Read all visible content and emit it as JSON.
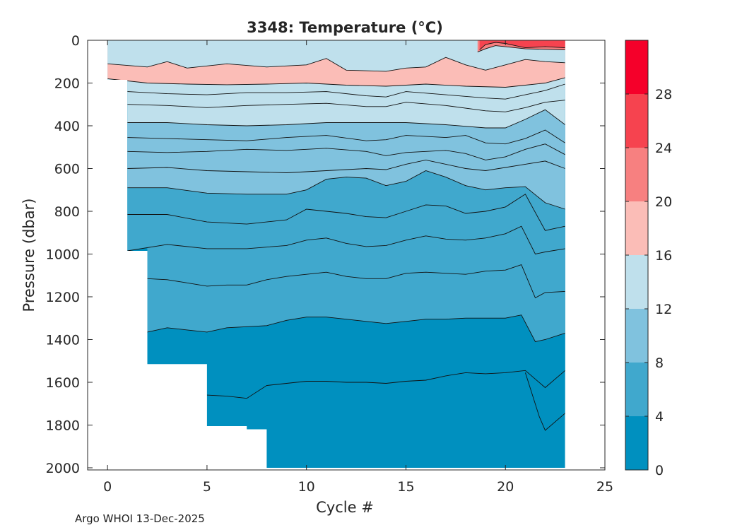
{
  "chart_data": {
    "type": "contour",
    "title": "3348:  Temperature (",
    "title_unit": "°C)",
    "xlabel": "Cycle #",
    "ylabel": "Pressure (dbar)",
    "xlim": [
      -1,
      25
    ],
    "ylim": [
      2010,
      0
    ],
    "x_ticks": [
      0,
      5,
      10,
      15,
      20,
      25
    ],
    "y_ticks": [
      0,
      200,
      400,
      600,
      800,
      1000,
      1200,
      1400,
      1600,
      1800,
      2000
    ],
    "colorbar": {
      "range": [
        0,
        32
      ],
      "ticks": [
        0,
        4,
        8,
        12,
        16,
        20,
        24,
        28
      ],
      "levels": [
        {
          "min": 0,
          "max": 4,
          "color": "#0090bf"
        },
        {
          "min": 4,
          "max": 8,
          "color": "#40a8cd"
        },
        {
          "min": 8,
          "max": 12,
          "color": "#80c2de"
        },
        {
          "min": 12,
          "max": 16,
          "color": "#bfe0ec"
        },
        {
          "min": 16,
          "max": 20,
          "color": "#fbbdb7"
        },
        {
          "min": 20,
          "max": 24,
          "color": "#f78080"
        },
        {
          "min": 24,
          "max": 28,
          "color": "#f6434f"
        },
        {
          "min": 28,
          "max": 32,
          "color": "#f5002a"
        }
      ]
    },
    "profile_max_depth": [
      {
        "cycle": 0,
        "pressure": 185
      },
      {
        "cycle": 1,
        "pressure": 985
      },
      {
        "cycle": 2,
        "pressure": 1515
      },
      {
        "cycle": 5,
        "pressure": 1805
      },
      {
        "cycle": 7,
        "pressure": 1820
      },
      {
        "cycle": 8,
        "pressure": 2000
      },
      {
        "cycle": 23,
        "pressure": 2000
      }
    ],
    "isotherms": [
      {
        "temp": 24,
        "points": [
          [
            18.7,
            45
          ],
          [
            19.0,
            20
          ],
          [
            19.5,
            10
          ],
          [
            20.0,
            15
          ],
          [
            20.5,
            25
          ],
          [
            21.0,
            35
          ],
          [
            22.0,
            30
          ],
          [
            23.0,
            35
          ]
        ]
      },
      {
        "temp": 20,
        "points": [
          [
            18.6,
            55
          ],
          [
            19.0,
            40
          ],
          [
            19.5,
            25
          ],
          [
            20.0,
            30
          ],
          [
            21.0,
            40
          ],
          [
            23.0,
            45
          ]
        ]
      },
      {
        "temp": 16,
        "points": [
          [
            0,
            180
          ],
          [
            2,
            200
          ],
          [
            4,
            205
          ],
          [
            6,
            208
          ],
          [
            8,
            205
          ],
          [
            10,
            200
          ],
          [
            12,
            210
          ],
          [
            14,
            215
          ],
          [
            16,
            205
          ],
          [
            18,
            215
          ],
          [
            20,
            220
          ],
          [
            21,
            210
          ],
          [
            22,
            200
          ],
          [
            23,
            175
          ]
        ]
      },
      {
        "temp": 15,
        "points": [
          [
            0,
            110
          ],
          [
            2,
            125
          ],
          [
            3,
            100
          ],
          [
            4,
            130
          ],
          [
            5,
            120
          ],
          [
            6,
            110
          ],
          [
            8,
            125
          ],
          [
            10,
            115
          ],
          [
            11,
            85
          ],
          [
            12,
            140
          ],
          [
            14,
            145
          ],
          [
            15,
            130
          ],
          [
            16,
            125
          ],
          [
            17,
            80
          ],
          [
            18,
            115
          ],
          [
            19,
            140
          ],
          [
            20,
            115
          ],
          [
            21,
            90
          ],
          [
            22,
            100
          ],
          [
            23,
            105
          ]
        ]
      },
      {
        "temp": 14,
        "points": [
          [
            1,
            240
          ],
          [
            3,
            250
          ],
          [
            5,
            255
          ],
          [
            7,
            245
          ],
          [
            9,
            245
          ],
          [
            11,
            240
          ],
          [
            13,
            260
          ],
          [
            14,
            265
          ],
          [
            15,
            240
          ],
          [
            17,
            255
          ],
          [
            19,
            270
          ],
          [
            20,
            275
          ],
          [
            21,
            255
          ],
          [
            22,
            235
          ],
          [
            23,
            205
          ]
        ]
      },
      {
        "temp": 13,
        "points": [
          [
            1,
            300
          ],
          [
            3,
            305
          ],
          [
            5,
            315
          ],
          [
            7,
            305
          ],
          [
            9,
            300
          ],
          [
            11,
            295
          ],
          [
            13,
            310
          ],
          [
            14,
            310
          ],
          [
            15,
            290
          ],
          [
            17,
            305
          ],
          [
            19,
            330
          ],
          [
            20,
            335
          ],
          [
            21,
            315
          ],
          [
            22,
            290
          ],
          [
            23,
            280
          ]
        ]
      },
      {
        "temp": 12,
        "points": [
          [
            1,
            385
          ],
          [
            3,
            385
          ],
          [
            5,
            395
          ],
          [
            7,
            400
          ],
          [
            9,
            395
          ],
          [
            11,
            385
          ],
          [
            13,
            385
          ],
          [
            15,
            385
          ],
          [
            17,
            395
          ],
          [
            19,
            410
          ],
          [
            20,
            410
          ],
          [
            21,
            370
          ],
          [
            22,
            325
          ],
          [
            23,
            395
          ]
        ]
      },
      {
        "temp": 11,
        "points": [
          [
            1,
            455
          ],
          [
            3,
            460
          ],
          [
            5,
            465
          ],
          [
            7,
            470
          ],
          [
            9,
            455
          ],
          [
            11,
            445
          ],
          [
            13,
            470
          ],
          [
            14,
            465
          ],
          [
            15,
            445
          ],
          [
            17,
            455
          ],
          [
            18,
            445
          ],
          [
            19,
            480
          ],
          [
            20,
            485
          ],
          [
            21,
            460
          ],
          [
            22,
            420
          ],
          [
            23,
            480
          ]
        ]
      },
      {
        "temp": 10,
        "points": [
          [
            1,
            520
          ],
          [
            3,
            525
          ],
          [
            5,
            520
          ],
          [
            7,
            510
          ],
          [
            9,
            515
          ],
          [
            11,
            505
          ],
          [
            13,
            520
          ],
          [
            14,
            540
          ],
          [
            15,
            525
          ],
          [
            17,
            515
          ],
          [
            18,
            530
          ],
          [
            19,
            560
          ],
          [
            20,
            545
          ],
          [
            21,
            510
          ],
          [
            22,
            485
          ],
          [
            23,
            535
          ]
        ]
      },
      {
        "temp": 9,
        "points": [
          [
            1,
            600
          ],
          [
            3,
            595
          ],
          [
            5,
            610
          ],
          [
            7,
            615
          ],
          [
            9,
            620
          ],
          [
            11,
            610
          ],
          [
            13,
            600
          ],
          [
            14,
            605
          ],
          [
            15,
            580
          ],
          [
            16,
            560
          ],
          [
            17,
            580
          ],
          [
            18,
            600
          ],
          [
            19,
            610
          ],
          [
            20,
            595
          ],
          [
            21,
            580
          ],
          [
            22,
            565
          ],
          [
            23,
            600
          ]
        ]
      },
      {
        "temp": 8,
        "points": [
          [
            1,
            690
          ],
          [
            3,
            690
          ],
          [
            5,
            715
          ],
          [
            7,
            720
          ],
          [
            9,
            720
          ],
          [
            10,
            700
          ],
          [
            11,
            650
          ],
          [
            12,
            640
          ],
          [
            13,
            645
          ],
          [
            14,
            680
          ],
          [
            15,
            660
          ],
          [
            16,
            610
          ],
          [
            17,
            640
          ],
          [
            18,
            680
          ],
          [
            19,
            700
          ],
          [
            20,
            690
          ],
          [
            21,
            685
          ],
          [
            22,
            760
          ],
          [
            23,
            790
          ]
        ]
      },
      {
        "temp": 7,
        "points": [
          [
            1,
            815
          ],
          [
            3,
            815
          ],
          [
            5,
            850
          ],
          [
            7,
            860
          ],
          [
            9,
            840
          ],
          [
            10,
            790
          ],
          [
            11,
            800
          ],
          [
            12,
            810
          ],
          [
            13,
            825
          ],
          [
            14,
            830
          ],
          [
            15,
            800
          ],
          [
            16,
            770
          ],
          [
            17,
            775
          ],
          [
            18,
            810
          ],
          [
            19,
            800
          ],
          [
            20,
            780
          ],
          [
            21,
            720
          ],
          [
            22,
            890
          ],
          [
            23,
            870
          ]
        ]
      },
      {
        "temp": 6,
        "points": [
          [
            1,
            985
          ],
          [
            3,
            955
          ],
          [
            5,
            975
          ],
          [
            7,
            975
          ],
          [
            9,
            960
          ],
          [
            10,
            935
          ],
          [
            11,
            925
          ],
          [
            12,
            950
          ],
          [
            13,
            965
          ],
          [
            14,
            960
          ],
          [
            15,
            935
          ],
          [
            16,
            915
          ],
          [
            17,
            930
          ],
          [
            18,
            935
          ],
          [
            19,
            925
          ],
          [
            20,
            905
          ],
          [
            20.8,
            870
          ],
          [
            21.5,
            1000
          ],
          [
            22,
            990
          ],
          [
            23,
            975
          ]
        ]
      },
      {
        "temp": 5,
        "points": [
          [
            2,
            1115
          ],
          [
            3,
            1120
          ],
          [
            4,
            1135
          ],
          [
            5,
            1150
          ],
          [
            6,
            1145
          ],
          [
            7,
            1145
          ],
          [
            8,
            1120
          ],
          [
            9,
            1105
          ],
          [
            10,
            1095
          ],
          [
            11,
            1085
          ],
          [
            12,
            1105
          ],
          [
            13,
            1115
          ],
          [
            14,
            1115
          ],
          [
            15,
            1090
          ],
          [
            16,
            1085
          ],
          [
            17,
            1090
          ],
          [
            18,
            1095
          ],
          [
            19,
            1080
          ],
          [
            20,
            1075
          ],
          [
            20.8,
            1050
          ],
          [
            21.5,
            1205
          ],
          [
            22,
            1180
          ],
          [
            23,
            1175
          ]
        ]
      },
      {
        "temp": 4,
        "points": [
          [
            2,
            1365
          ],
          [
            3,
            1345
          ],
          [
            4,
            1355
          ],
          [
            5,
            1365
          ],
          [
            6,
            1345
          ],
          [
            7,
            1340
          ],
          [
            8,
            1335
          ],
          [
            9,
            1310
          ],
          [
            10,
            1295
          ],
          [
            11,
            1295
          ],
          [
            12,
            1305
          ],
          [
            13,
            1315
          ],
          [
            14,
            1325
          ],
          [
            15,
            1315
          ],
          [
            16,
            1305
          ],
          [
            17,
            1305
          ],
          [
            18,
            1300
          ],
          [
            19,
            1300
          ],
          [
            20,
            1300
          ],
          [
            20.8,
            1285
          ],
          [
            21.5,
            1410
          ],
          [
            22,
            1400
          ],
          [
            23,
            1370
          ]
        ]
      },
      {
        "temp": 3,
        "points": [
          [
            5,
            1660
          ],
          [
            6,
            1665
          ],
          [
            7,
            1675
          ],
          [
            8,
            1615
          ],
          [
            9,
            1605
          ],
          [
            10,
            1595
          ],
          [
            11,
            1595
          ],
          [
            12,
            1600
          ],
          [
            13,
            1600
          ],
          [
            14,
            1605
          ],
          [
            15,
            1595
          ],
          [
            16,
            1590
          ],
          [
            17,
            1570
          ],
          [
            18,
            1555
          ],
          [
            19,
            1560
          ],
          [
            20,
            1555
          ],
          [
            21,
            1545
          ],
          [
            22,
            1625
          ],
          [
            23,
            1545
          ]
        ]
      },
      {
        "temp": 2.5,
        "points": [
          [
            21,
            1555
          ],
          [
            21.7,
            1760
          ],
          [
            22,
            1825
          ],
          [
            23,
            1745
          ]
        ]
      }
    ]
  },
  "footer": "Argo WHOI 13-Dec-2025"
}
